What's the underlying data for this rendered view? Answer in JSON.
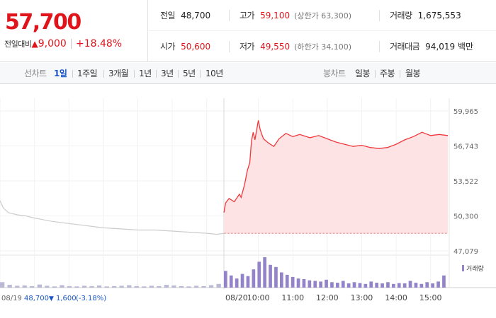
{
  "summary": {
    "price": "57,700",
    "change_label": "전일대비",
    "change_arrow": "▲",
    "change_value": "9,000",
    "change_pct": "+18.48%",
    "prev_close_label": "전일",
    "prev_close": "48,700",
    "high_label": "고가",
    "high": "59,100",
    "upper_limit": "(상한가 63,300)",
    "volume_label": "거래량",
    "volume": "1,675,553",
    "open_label": "시가",
    "open": "50,600",
    "low_label": "저가",
    "low": "49,550",
    "lower_limit": "(하한가 34,100)",
    "trade_value_label": "거래대금",
    "trade_value": "94,019 백만"
  },
  "line_tabs": {
    "label": "선차트",
    "items": [
      "1일",
      "1주일",
      "3개월",
      "1년",
      "3년",
      "5년",
      "10년"
    ],
    "active_index": 0
  },
  "candle_tabs": {
    "label": "봉차트",
    "items": [
      "일봉",
      "주봉",
      "월봉"
    ]
  },
  "colors": {
    "up": "#e0151b",
    "down": "#1a55c8",
    "prev_line": "#cccccc",
    "today_line": "#f0393c",
    "today_fill": "#fde3e4",
    "volume": "#9383c9"
  },
  "chart_data": {
    "type": "line",
    "y_ticks": [
      "59,965",
      "56,743",
      "53,522",
      "50,300",
      "47,079"
    ],
    "ylim": [
      47079,
      59965
    ],
    "volume_legend": "거래량",
    "prev_day_summary": {
      "date": "08/19",
      "close": "48,700",
      "arrow": "▼",
      "change": "1,600",
      "pct": "(-3.18%)"
    },
    "x_ticks": [
      "08/20",
      "10:00",
      "11:00",
      "12:00",
      "13:00",
      "14:00",
      "15:00"
    ],
    "x_tick_hours": [
      9,
      10,
      11,
      12,
      13,
      14,
      15
    ],
    "baseline": 48700,
    "series": [
      {
        "session": "08/19",
        "hours": [
          9.0,
          9.1,
          9.25,
          9.5,
          9.75,
          10.0,
          10.5,
          11.0,
          11.5,
          12.0,
          12.5,
          13.0,
          13.5,
          14.0,
          14.5,
          15.0,
          15.3,
          15.5
        ],
        "values": [
          51700,
          51000,
          50600,
          50400,
          50300,
          50100,
          49800,
          49600,
          49400,
          49200,
          49100,
          49000,
          49000,
          48900,
          48800,
          48700,
          48600,
          48700
        ]
      },
      {
        "session": "08/20",
        "hours": [
          9.0,
          9.05,
          9.15,
          9.3,
          9.45,
          9.5,
          9.6,
          9.68,
          9.75,
          9.8,
          9.85,
          9.9,
          10.0,
          10.05,
          10.1,
          10.15,
          10.3,
          10.45,
          10.6,
          10.8,
          11.0,
          11.2,
          11.5,
          11.75,
          12.0,
          12.25,
          12.5,
          12.75,
          13.0,
          13.25,
          13.5,
          13.75,
          14.0,
          14.25,
          14.5,
          14.75,
          15.0,
          15.25,
          15.5
        ],
        "values": [
          50600,
          51500,
          51900,
          51600,
          52300,
          52000,
          53200,
          54500,
          55200,
          57200,
          58000,
          57300,
          59100,
          58300,
          57800,
          57400,
          57000,
          56700,
          57400,
          57900,
          57600,
          57800,
          57500,
          57700,
          57400,
          57100,
          56900,
          56700,
          56800,
          56600,
          56500,
          56600,
          56900,
          57300,
          57600,
          58000,
          57700,
          57800,
          57700
        ]
      }
    ],
    "volume": [
      {
        "session": "08/19",
        "values": [
          18,
          9,
          6,
          7,
          5,
          10,
          6,
          4,
          8,
          5,
          4,
          6,
          5,
          7,
          4,
          5,
          6,
          8,
          5,
          4,
          6,
          5,
          9,
          7,
          5,
          4,
          6,
          5,
          8,
          12
        ]
      },
      {
        "session": "08/20",
        "values": [
          55,
          40,
          30,
          45,
          38,
          60,
          85,
          100,
          75,
          68,
          50,
          42,
          35,
          30,
          28,
          24,
          22,
          20,
          26,
          18,
          16,
          22,
          14,
          18,
          15,
          12,
          20,
          16,
          14,
          18,
          12,
          15,
          14,
          22,
          16,
          12,
          18,
          14,
          20,
          40
        ]
      }
    ]
  }
}
